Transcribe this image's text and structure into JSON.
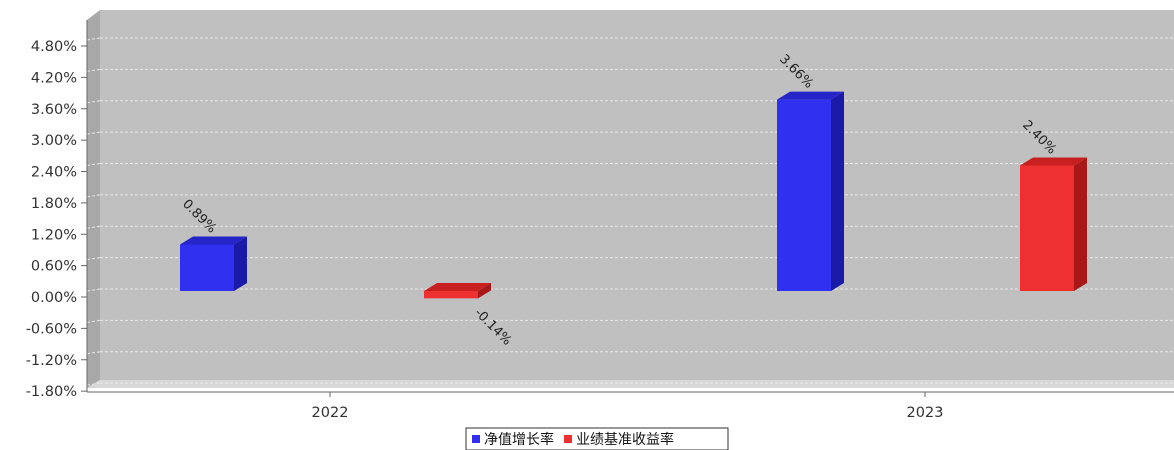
{
  "chart_data": {
    "type": "bar",
    "categories": [
      "2022",
      "2023"
    ],
    "series": [
      {
        "name": "净值增长率",
        "values": [
          0.89,
          3.66
        ],
        "labels": [
          "0.89%",
          "3.66%"
        ],
        "color": "#3030f0",
        "side_color": "#1a1aa8",
        "top_color": "#2525c8"
      },
      {
        "name": "业绩基准收益率",
        "values": [
          -0.14,
          2.4
        ],
        "labels": [
          "-0.14%",
          "2.40%"
        ],
        "color": "#ee3030",
        "side_color": "#a81818",
        "top_color": "#c82020"
      }
    ],
    "y_ticks": [
      "4.80%",
      "4.20%",
      "3.60%",
      "3.00%",
      "2.40%",
      "1.80%",
      "1.20%",
      "0.60%",
      "0.00%",
      "-0.60%",
      "-1.20%",
      "-1.80%"
    ],
    "ylim": [
      -1.8,
      4.8
    ],
    "y_unit": "%",
    "grid": true,
    "legend_position": "bottom",
    "plot_background": "#c0c0c0"
  }
}
